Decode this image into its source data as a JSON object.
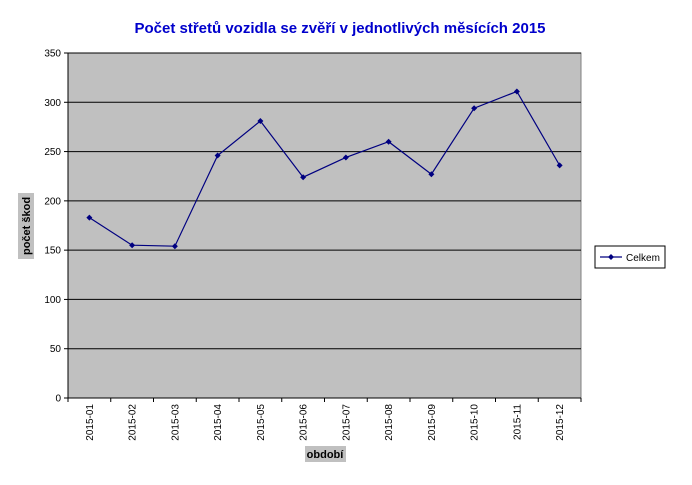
{
  "chart_data": {
    "type": "line",
    "title": "Počet střetů vozidla se zvěří v jednotlivých měsících 2015",
    "xlabel": "období",
    "ylabel": "počet škod",
    "categories": [
      "2015-01",
      "2015-02",
      "2015-03",
      "2015-04",
      "2015-05",
      "2015-06",
      "2015-07",
      "2015-08",
      "2015-09",
      "2015-10",
      "2015-11",
      "2015-12"
    ],
    "series": [
      {
        "name": "Celkem",
        "values": [
          183,
          155,
          154,
          246,
          281,
          224,
          244,
          260,
          227,
          294,
          311,
          236
        ]
      }
    ],
    "ylim": [
      0,
      350
    ],
    "yticks": [
      0,
      50,
      100,
      150,
      200,
      250,
      300,
      350
    ],
    "grid": true,
    "legend_position": "right",
    "colors": {
      "title": "#0000cc",
      "plot_background": "#c0c0c0",
      "series_line": "#000080",
      "axis_title_background": "#c0c0c0"
    }
  }
}
